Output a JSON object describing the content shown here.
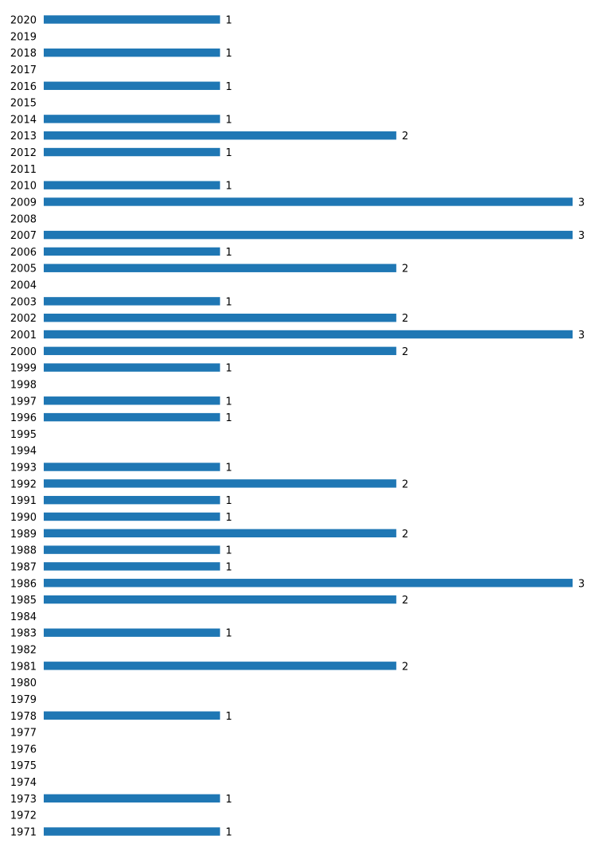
{
  "chart_data": {
    "type": "bar",
    "orientation": "horizontal",
    "title": "",
    "xlabel": "",
    "ylabel": "",
    "xlim": [
      0,
      3
    ],
    "grid": false,
    "legend": "none",
    "bar_color": "#1f77b4",
    "show_value_labels": true,
    "categories": [
      "2020",
      "2019",
      "2018",
      "2017",
      "2016",
      "2015",
      "2014",
      "2013",
      "2012",
      "2011",
      "2010",
      "2009",
      "2008",
      "2007",
      "2006",
      "2005",
      "2004",
      "2003",
      "2002",
      "2001",
      "2000",
      "1999",
      "1998",
      "1997",
      "1996",
      "1995",
      "1994",
      "1993",
      "1992",
      "1991",
      "1990",
      "1989",
      "1988",
      "1987",
      "1986",
      "1985",
      "1984",
      "1983",
      "1982",
      "1981",
      "1980",
      "1979",
      "1978",
      "1977",
      "1976",
      "1975",
      "1974",
      "1973",
      "1972",
      "1971"
    ],
    "values": [
      1,
      0,
      1,
      0,
      1,
      0,
      1,
      2,
      1,
      0,
      1,
      3,
      0,
      3,
      1,
      2,
      0,
      1,
      2,
      3,
      2,
      1,
      0,
      1,
      1,
      0,
      0,
      1,
      2,
      1,
      1,
      2,
      1,
      1,
      3,
      2,
      0,
      1,
      0,
      2,
      0,
      0,
      1,
      0,
      0,
      0,
      0,
      1,
      0,
      1
    ]
  }
}
